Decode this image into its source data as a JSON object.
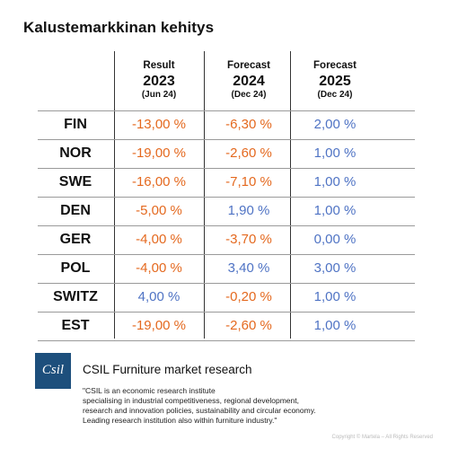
{
  "title": "Kalustemarkkinan kehitys",
  "chart_data": {
    "type": "table",
    "columns": [
      {
        "label": "Result",
        "year": "2023",
        "sub": "(Jun 24)"
      },
      {
        "label": "Forecast",
        "year": "2024",
        "sub": "(Dec 24)"
      },
      {
        "label": "Forecast",
        "year": "2025",
        "sub": "(Dec 24)"
      }
    ],
    "rows": [
      {
        "country": "FIN",
        "values": [
          -13.0,
          -6.3,
          2.0
        ],
        "display": [
          "-13,00 %",
          "-6,30 %",
          "2,00 %"
        ]
      },
      {
        "country": "NOR",
        "values": [
          -19.0,
          -2.6,
          1.0
        ],
        "display": [
          "-19,00 %",
          "-2,60 %",
          "1,00 %"
        ]
      },
      {
        "country": "SWE",
        "values": [
          -16.0,
          -7.1,
          1.0
        ],
        "display": [
          "-16,00 %",
          "-7,10 %",
          "1,00 %"
        ]
      },
      {
        "country": "DEN",
        "values": [
          -5.0,
          1.9,
          1.0
        ],
        "display": [
          "-5,00 %",
          "1,90 %",
          "1,00 %"
        ]
      },
      {
        "country": "GER",
        "values": [
          -4.0,
          -3.7,
          0.0
        ],
        "display": [
          "-4,00 %",
          "-3,70 %",
          "0,00 %"
        ]
      },
      {
        "country": "POL",
        "values": [
          -4.0,
          3.4,
          3.0
        ],
        "display": [
          "-4,00 %",
          "3,40 %",
          "3,00 %"
        ]
      },
      {
        "country": "SWITZ",
        "values": [
          4.0,
          -0.2,
          1.0
        ],
        "display": [
          "4,00 %",
          "-0,20 %",
          "1,00 %"
        ]
      },
      {
        "country": "EST",
        "values": [
          -19.0,
          -2.6,
          1.0
        ],
        "display": [
          "-19,00 %",
          "-2,60 %",
          "1,00 %"
        ]
      }
    ],
    "colors": {
      "negative": "#e4691f",
      "non_negative": "#4f73c4"
    }
  },
  "source": {
    "logo_text": "Csil",
    "title": "CSIL Furniture market research",
    "description_lines": [
      "\"CSIL is an economic research institute",
      "specialising in industrial competitiveness, regional development,",
      "research and innovation policies, sustainability and circular economy.",
      "Leading research institution also within furniture industry.\""
    ]
  },
  "copyright": "Copyright © Martela – All Rights Reserved"
}
